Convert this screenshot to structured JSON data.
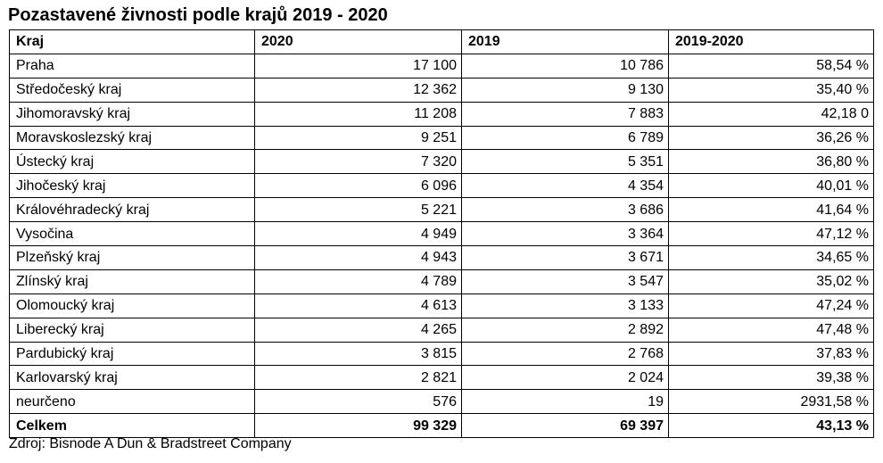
{
  "title": "Pozastavené živnosti podle krajů 2019 - 2020",
  "table": {
    "headers": [
      "Kraj",
      "2020",
      "2019",
      "2019-2020"
    ],
    "rows": [
      [
        "Praha",
        "17 100",
        "10 786",
        "58,54 %"
      ],
      [
        "Středočeský kraj",
        "12 362",
        "9 130",
        "35,40 %"
      ],
      [
        "Jihomoravský kraj",
        "11 208",
        "7 883",
        "42,18 0"
      ],
      [
        "Moravskoslezský kraj",
        "9 251",
        "6 789",
        "36,26 %"
      ],
      [
        "Ústecký kraj",
        "7 320",
        "5 351",
        "36,80 %"
      ],
      [
        "Jihočeský kraj",
        "6 096",
        "4 354",
        "40,01 %"
      ],
      [
        "Královéhradecký kraj",
        "5 221",
        "3 686",
        "41,64 %"
      ],
      [
        "Vysočina",
        "4 949",
        "3 364",
        "47,12 %"
      ],
      [
        "Plzeňský kraj",
        "4 943",
        "3 671",
        "34,65 %"
      ],
      [
        "Zlínský kraj",
        "4 789",
        "3 547",
        "35,02 %"
      ],
      [
        "Olomoucký kraj",
        "4 613",
        "3 133",
        "47,24 %"
      ],
      [
        "Liberecký kraj",
        "4 265",
        "2 892",
        "47,48 %"
      ],
      [
        "Pardubický kraj",
        "3 815",
        "2 768",
        "37,83 %"
      ],
      [
        "Karlovarský kraj",
        "2 821",
        "2 024",
        "39,38 %"
      ],
      [
        "neurčeno",
        "576",
        "19",
        "2931,58 %"
      ]
    ],
    "total": [
      "Celkem",
      "99 329",
      "69 397",
      "43,13 %"
    ]
  },
  "source": "Zdroj: Bisnode A Dun & Bradstreet Company"
}
